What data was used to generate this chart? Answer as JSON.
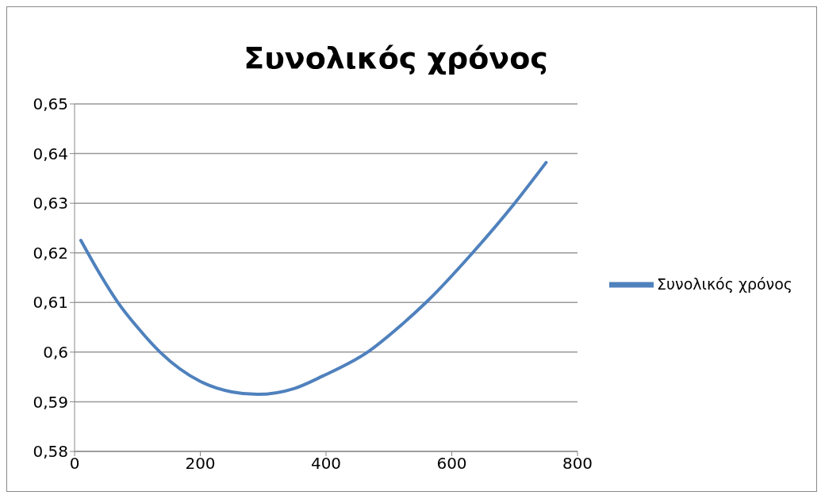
{
  "chart_data": {
    "type": "line",
    "title": "Συνολικός χρόνος",
    "x": [
      10,
      40,
      69,
      100,
      136,
      200,
      250,
      291,
      350,
      395,
      466,
      520,
      559,
      633,
      700,
      750
    ],
    "series": [
      {
        "name": "Συνολικός χρόνος",
        "color": "#4f81bd",
        "values": [
          0.6225,
          0.6158,
          0.61,
          0.605,
          0.6,
          0.5941,
          0.592,
          0.5915,
          0.5927,
          0.5952,
          0.6,
          0.6055,
          0.61,
          0.62,
          0.63,
          0.6382
        ]
      }
    ],
    "xlim": [
      0,
      800
    ],
    "xticks": [
      0,
      200,
      400,
      600,
      800
    ],
    "ylim": [
      0.58,
      0.65
    ],
    "yticks": [
      {
        "value": 0.58,
        "label": "0,58"
      },
      {
        "value": 0.59,
        "label": "0,59"
      },
      {
        "value": 0.6,
        "label": "0,6"
      },
      {
        "value": 0.61,
        "label": "0,61"
      },
      {
        "value": 0.62,
        "label": "0,62"
      },
      {
        "value": 0.63,
        "label": "0,63"
      },
      {
        "value": 0.64,
        "label": "0,64"
      },
      {
        "value": 0.65,
        "label": "0,65"
      }
    ],
    "grid": "y",
    "legend": "right",
    "marker": "none",
    "line_style": "solid"
  }
}
